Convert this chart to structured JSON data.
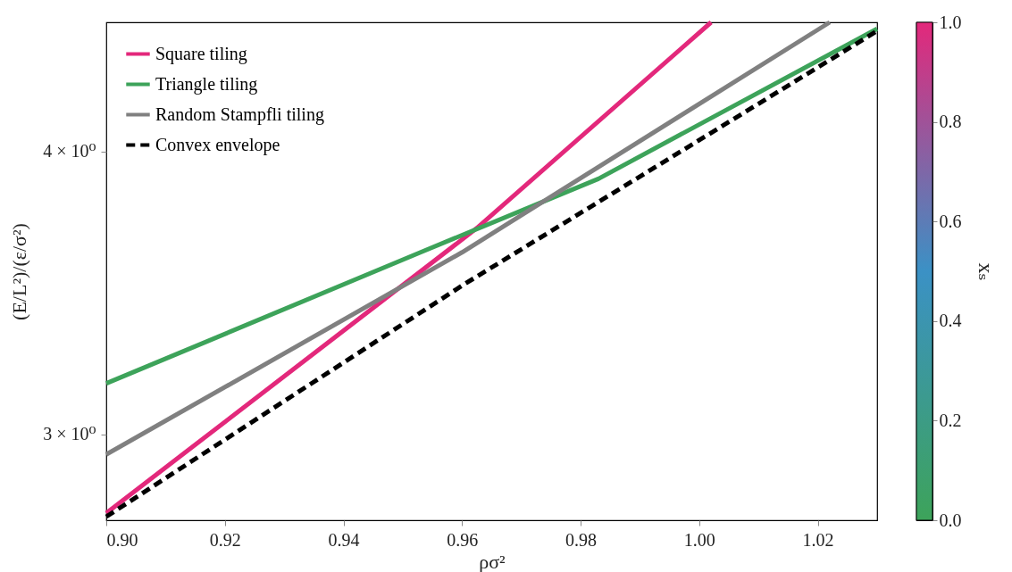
{
  "chart_data": {
    "type": "line",
    "xlabel": "ρσ²",
    "ylabel": "(E/L²)/(ε/σ²)",
    "clabel": "xₛ",
    "log": "y",
    "xlim": [
      0.9,
      1.03
    ],
    "xticks": [
      {
        "value": 0.9,
        "label": "0.90"
      },
      {
        "value": 0.92,
        "label": "0.92"
      },
      {
        "value": 0.94,
        "label": "0.94"
      },
      {
        "value": 0.96,
        "label": "0.96"
      },
      {
        "value": 0.98,
        "label": "0.98"
      },
      {
        "value": 1.0,
        "label": "1.00"
      },
      {
        "value": 1.02,
        "label": "1.02"
      }
    ],
    "ylim": [
      2.75,
      4.56
    ],
    "yticks": [
      {
        "value": 3,
        "label": "3 × 10⁰"
      },
      {
        "value": 4,
        "label": "4 × 10⁰"
      }
    ],
    "clim": [
      0,
      1
    ],
    "cticks": [
      {
        "value": 0,
        "label": "0.0"
      },
      {
        "value": 0.2,
        "label": "0.2"
      },
      {
        "value": 0.4,
        "label": "0.4"
      },
      {
        "value": 0.6,
        "label": "0.6"
      },
      {
        "value": 0.8,
        "label": "0.8"
      },
      {
        "value": 1,
        "label": "1.0"
      }
    ],
    "colors": [
      "#3da35a",
      "#3b91c5",
      "#e3287b"
    ],
    "legend": "top left",
    "grid": false,
    "series": [
      {
        "name": "Square tiling",
        "color": "#e3287b",
        "line_style": "solid",
        "x": [
          0.9,
          0.9625,
          1.002
        ],
        "values": [
          2.77,
          3.7,
          4.56
        ]
      },
      {
        "name": "Triangle tiling",
        "color": "#3da35a",
        "line_style": "solid",
        "x": [
          0.9,
          0.953,
          0.983,
          1.03
        ],
        "values": [
          3.16,
          3.61,
          3.89,
          4.53
        ]
      },
      {
        "name": "Random Stampfli tiling",
        "color": "#808080",
        "line_style": "solid",
        "x": [
          0.9,
          0.96,
          1.022
        ],
        "values": [
          2.94,
          3.61,
          4.56
        ]
      },
      {
        "name": "Convex envelope",
        "color": "#000000",
        "line_style": "dashed",
        "x": [
          0.9,
          0.96,
          1.03
        ],
        "values": [
          2.76,
          3.49,
          4.52
        ]
      }
    ]
  }
}
